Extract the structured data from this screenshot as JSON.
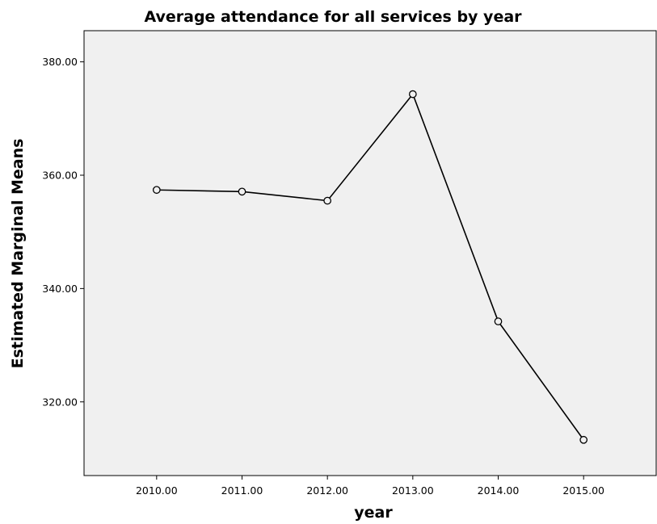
{
  "chart_data": {
    "type": "line",
    "title": "Average attendance for all services by year",
    "xlabel": "year",
    "ylabel": "Estimated Marginal Means",
    "categories": [
      "2010.00",
      "2011.00",
      "2012.00",
      "2013.00",
      "2014.00",
      "2015.00"
    ],
    "x": [
      2010,
      2011,
      2012,
      2013,
      2014,
      2015
    ],
    "y_ticks": [
      320,
      340,
      360,
      380
    ],
    "y_tick_labels": [
      "320.00",
      "340.00",
      "360.00",
      "380.00"
    ],
    "series": [
      {
        "values": [
          357.4,
          357.1,
          355.5,
          374.3,
          334.2,
          313.3
        ]
      }
    ],
    "ylim": [
      307.0,
      385.5
    ],
    "xlim": [
      2009.15,
      2015.85
    ],
    "grid": false,
    "legend": "none",
    "markers": "hollow-circle",
    "colors": {
      "plot_background": "#f0f0f0",
      "line": "#000000",
      "frame": "#000000"
    }
  }
}
